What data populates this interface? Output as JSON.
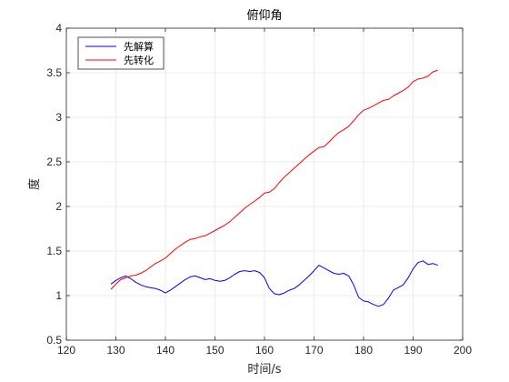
{
  "chart_data": {
    "type": "line",
    "title": "俯仰角",
    "xlabel": "时间/s",
    "ylabel": "度",
    "xlim": [
      120,
      200
    ],
    "ylim": [
      0.5,
      4
    ],
    "xticks": [
      120,
      130,
      140,
      150,
      160,
      170,
      180,
      190,
      200
    ],
    "yticks": [
      0.5,
      1,
      1.5,
      2,
      2.5,
      3,
      3.5,
      4
    ],
    "xtick_labels": [
      "120",
      "130",
      "140",
      "150",
      "160",
      "170",
      "180",
      "190",
      "200"
    ],
    "ytick_labels": [
      "0.5",
      "1",
      "1.5",
      "2",
      "2.5",
      "3",
      "3.5",
      "4"
    ],
    "grid": true,
    "legend_position": "top-left",
    "series": [
      {
        "name": "先解算",
        "color": "#0000ff",
        "x": [
          129,
          130,
          131,
          132,
          133,
          134,
          135,
          136,
          137,
          138,
          139,
          140,
          141,
          142,
          143,
          144,
          145,
          146,
          147,
          148,
          149,
          150,
          151,
          152,
          153,
          154,
          155,
          156,
          157,
          158,
          159,
          160,
          161,
          162,
          163,
          164,
          165,
          166,
          167,
          168,
          169,
          170,
          171,
          172,
          173,
          174,
          175,
          176,
          177,
          178,
          179,
          180,
          181,
          182,
          183,
          184,
          185,
          186,
          187,
          188,
          189,
          190,
          191,
          192,
          193,
          194,
          195
        ],
        "y": [
          1.13,
          1.17,
          1.2,
          1.22,
          1.19,
          1.15,
          1.12,
          1.1,
          1.09,
          1.08,
          1.06,
          1.03,
          1.06,
          1.1,
          1.14,
          1.18,
          1.21,
          1.22,
          1.2,
          1.18,
          1.19,
          1.17,
          1.16,
          1.17,
          1.2,
          1.24,
          1.27,
          1.28,
          1.27,
          1.28,
          1.26,
          1.2,
          1.08,
          1.02,
          1.01,
          1.03,
          1.06,
          1.08,
          1.12,
          1.17,
          1.22,
          1.28,
          1.34,
          1.31,
          1.28,
          1.25,
          1.24,
          1.25,
          1.22,
          1.12,
          0.98,
          0.94,
          0.93,
          0.9,
          0.88,
          0.9,
          0.97,
          1.06,
          1.09,
          1.12,
          1.2,
          1.3,
          1.37,
          1.39,
          1.35,
          1.36,
          1.34
        ]
      },
      {
        "name": "先转化",
        "color": "#ff0000",
        "x": [
          129,
          130,
          131,
          132,
          133,
          134,
          135,
          136,
          137,
          138,
          139,
          140,
          141,
          142,
          143,
          144,
          145,
          146,
          147,
          148,
          149,
          150,
          151,
          152,
          153,
          154,
          155,
          156,
          157,
          158,
          159,
          160,
          161,
          162,
          163,
          164,
          165,
          166,
          167,
          168,
          169,
          170,
          171,
          172,
          173,
          174,
          175,
          176,
          177,
          178,
          179,
          180,
          181,
          182,
          183,
          184,
          185,
          186,
          187,
          188,
          189,
          190,
          191,
          192,
          193,
          194,
          195
        ],
        "y": [
          1.07,
          1.13,
          1.18,
          1.2,
          1.22,
          1.23,
          1.25,
          1.28,
          1.32,
          1.36,
          1.39,
          1.42,
          1.47,
          1.52,
          1.56,
          1.6,
          1.63,
          1.64,
          1.66,
          1.67,
          1.7,
          1.73,
          1.76,
          1.79,
          1.83,
          1.88,
          1.93,
          1.98,
          2.02,
          2.06,
          2.1,
          2.15,
          2.16,
          2.2,
          2.27,
          2.33,
          2.38,
          2.43,
          2.48,
          2.53,
          2.58,
          2.62,
          2.66,
          2.67,
          2.72,
          2.78,
          2.83,
          2.86,
          2.9,
          2.96,
          3.03,
          3.08,
          3.1,
          3.13,
          3.16,
          3.19,
          3.2,
          3.24,
          3.27,
          3.3,
          3.34,
          3.4,
          3.43,
          3.44,
          3.46,
          3.51,
          3.53
        ]
      }
    ]
  }
}
